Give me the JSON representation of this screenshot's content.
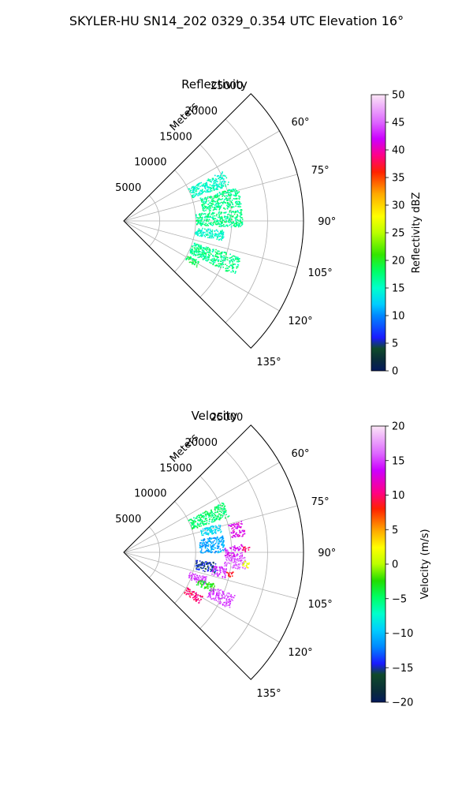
{
  "figure": {
    "title": "SKYLER-HU  SN14_202  0329_0.354 UTC Elevation 16°"
  },
  "chart_data": [
    {
      "type": "polar-sector",
      "title": "Reflectivity",
      "range_label": "Meters",
      "radial_ticks": [
        5000,
        10000,
        15000,
        20000,
        25000
      ],
      "radial_tick_labels": [
        "5000",
        "10000",
        "15000",
        "20000",
        "25000"
      ],
      "angle_ticks_deg": [
        45,
        60,
        75,
        90,
        105,
        120,
        135
      ],
      "angle_tick_labels": [
        "60°",
        "75°",
        "90°",
        "105°",
        "120°",
        "135°"
      ],
      "rmax": 25000,
      "theta_range_deg": [
        45,
        135
      ],
      "grid": true,
      "colorbar": {
        "label": "Reflectivity dBZ",
        "min": 0,
        "max": 50,
        "ticks": [
          0,
          5,
          10,
          15,
          20,
          25,
          30,
          35,
          40,
          45,
          50
        ],
        "tick_labels": [
          "0",
          "5",
          "10",
          "15",
          "20",
          "25",
          "30",
          "35",
          "40",
          "45",
          "50"
        ]
      },
      "echo_clusters": [
        {
          "azimuth_deg": [
            63,
            71
          ],
          "range_m": [
            10000,
            15500
          ],
          "value": 15
        },
        {
          "azimuth_deg": [
            73,
            83
          ],
          "range_m": [
            11000,
            16500
          ],
          "value": 17
        },
        {
          "azimuth_deg": [
            84,
            93
          ],
          "range_m": [
            10000,
            16500
          ],
          "value": 17
        },
        {
          "azimuth_deg": [
            95,
            101
          ],
          "range_m": [
            10000,
            14000
          ],
          "value": 15
        },
        {
          "azimuth_deg": [
            107,
            116
          ],
          "range_m": [
            10000,
            17000
          ],
          "value": 17
        },
        {
          "azimuth_deg": [
            118,
            122
          ],
          "range_m": [
            10000,
            12000
          ],
          "value": 18
        }
      ]
    },
    {
      "type": "polar-sector",
      "title": "Velocity",
      "range_label": "Meters",
      "radial_ticks": [
        5000,
        10000,
        15000,
        20000,
        25000
      ],
      "radial_tick_labels": [
        "5000",
        "10000",
        "15000",
        "20000",
        "25000"
      ],
      "angle_ticks_deg": [
        45,
        60,
        75,
        90,
        105,
        120,
        135
      ],
      "angle_tick_labels": [
        "60°",
        "75°",
        "90°",
        "105°",
        "120°",
        "135°"
      ],
      "rmax": 25000,
      "theta_range_deg": [
        45,
        135
      ],
      "grid": true,
      "colorbar": {
        "label": "Velocity (m/s)",
        "min": -20,
        "max": 20,
        "ticks": [
          -20,
          -15,
          -10,
          -5,
          0,
          5,
          10,
          15,
          20
        ],
        "tick_labels": [
          "−20",
          "−15",
          "−10",
          "−5",
          "0",
          "5",
          "10",
          "15",
          "20"
        ]
      },
      "echo_clusters": [
        {
          "azimuth_deg": [
            63,
            71
          ],
          "range_m": [
            10000,
            15500
          ],
          "value": -5
        },
        {
          "azimuth_deg": [
            73,
            78
          ],
          "range_m": [
            11000,
            14000
          ],
          "value": -9
        },
        {
          "azimuth_deg": [
            75,
            82
          ],
          "range_m": [
            15000,
            17000
          ],
          "value": 13
        },
        {
          "azimuth_deg": [
            80,
            90
          ],
          "range_m": [
            10500,
            14000
          ],
          "value": -11
        },
        {
          "azimuth_deg": [
            86,
            92
          ],
          "range_m": [
            14000,
            16500
          ],
          "value": 14
        },
        {
          "azimuth_deg": [
            87,
            90
          ],
          "range_m": [
            16500,
            17500
          ],
          "value": 10
        },
        {
          "azimuth_deg": [
            92,
            98
          ],
          "range_m": [
            14000,
            17000
          ],
          "value": 16
        },
        {
          "azimuth_deg": [
            94,
            97
          ],
          "range_m": [
            16500,
            17500
          ],
          "value": 2
        },
        {
          "azimuth_deg": [
            96,
            103
          ],
          "range_m": [
            10000,
            13000
          ],
          "value": -15
        },
        {
          "azimuth_deg": [
            98,
            104
          ],
          "range_m": [
            12500,
            14500
          ],
          "value": 15
        },
        {
          "azimuth_deg": [
            100,
            103
          ],
          "range_m": [
            14500,
            15500
          ],
          "value": 8
        },
        {
          "azimuth_deg": [
            106,
            112
          ],
          "range_m": [
            9500,
            12000
          ],
          "value": 15
        },
        {
          "azimuth_deg": [
            109,
            114
          ],
          "range_m": [
            11000,
            13500
          ],
          "value": -3
        },
        {
          "azimuth_deg": [
            111,
            118
          ],
          "range_m": [
            13000,
            16500
          ],
          "value": 15
        },
        {
          "azimuth_deg": [
            119,
            124
          ],
          "range_m": [
            10000,
            12500
          ],
          "value": 10
        }
      ]
    }
  ]
}
